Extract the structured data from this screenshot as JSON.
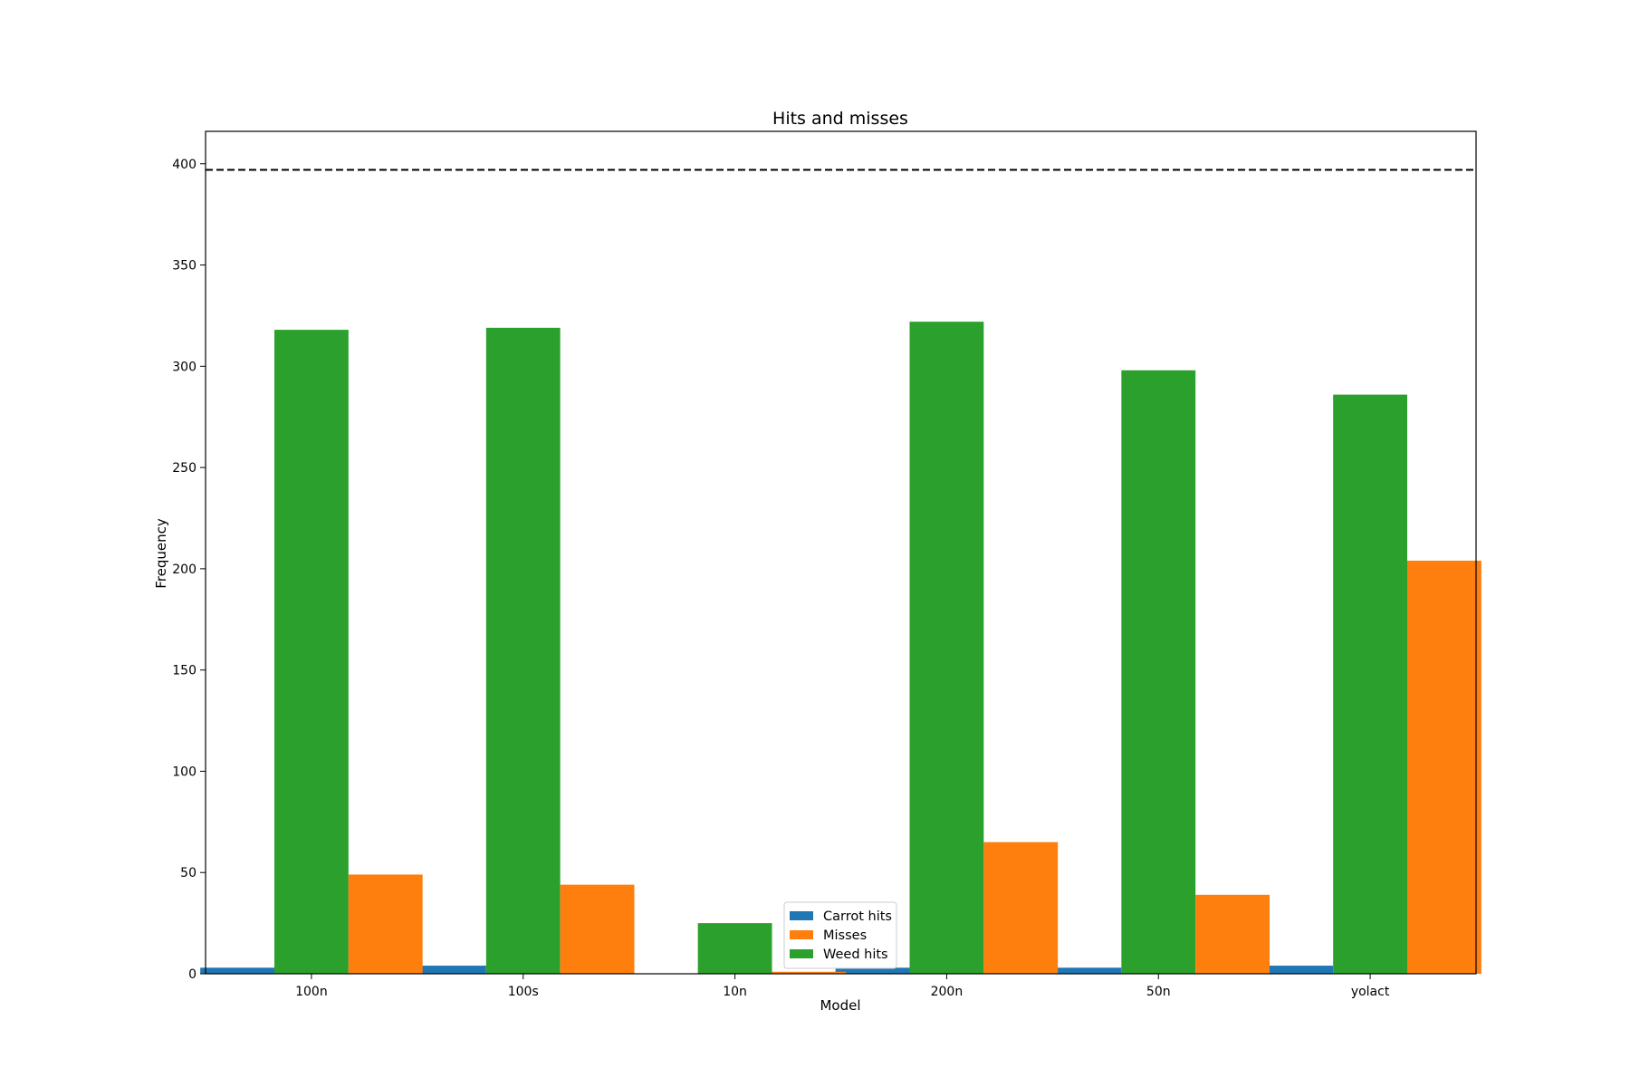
{
  "chart_data": {
    "type": "bar",
    "title": "Hits and misses",
    "xlabel": "Model",
    "ylabel": "Frequency",
    "categories": [
      "100n",
      "100s",
      "10n",
      "200n",
      "50n",
      "yolact"
    ],
    "series": [
      {
        "name": "Carrot hits",
        "color": "#1f77b4",
        "values": [
          3,
          4,
          0,
          3,
          3,
          4
        ]
      },
      {
        "name": "Weed hits",
        "color": "#2ca02c",
        "values": [
          318,
          319,
          25,
          322,
          298,
          286
        ]
      },
      {
        "name": "Misses",
        "color": "#ff7f0e",
        "values": [
          49,
          44,
          1,
          65,
          39,
          204
        ]
      }
    ],
    "legend_order": [
      "Carrot hits",
      "Misses",
      "Weed hits"
    ],
    "legend_position": "lower center",
    "reference_line": {
      "value": 397,
      "style": "dashed",
      "color": "#000000"
    },
    "ylim": [
      0,
      416
    ],
    "yticks": [
      0,
      50,
      100,
      150,
      200,
      250,
      300,
      350,
      400
    ],
    "grid": false
  }
}
